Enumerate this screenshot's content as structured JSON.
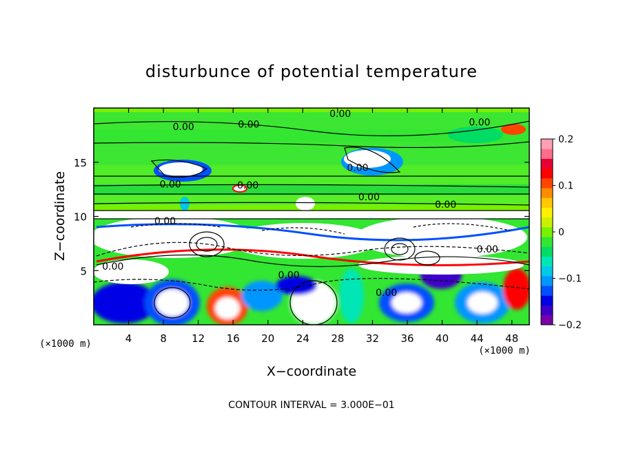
{
  "chart_data": {
    "type": "heatmap",
    "title": "disturbunce of potential temperature",
    "xlabel": "X−coordinate",
    "ylabel": "Z−coordinate",
    "x_unit": "(×1000 m)",
    "y_unit": "(×1000 m)",
    "xlim": [
      0,
      50
    ],
    "ylim": [
      0,
      20
    ],
    "x_ticks": [
      4,
      8,
      12,
      16,
      20,
      24,
      28,
      32,
      36,
      40,
      44,
      48
    ],
    "y_ticks": [
      5,
      10,
      15
    ],
    "colorbar": {
      "range": [
        -0.2,
        0.2
      ],
      "ticks": [
        {
          "value": 0.2,
          "label": "0.2"
        },
        {
          "value": 0.1,
          "label": "0.1"
        },
        {
          "value": 0,
          "label": "0"
        },
        {
          "value": -0.1,
          "label": "−0.1"
        },
        {
          "value": -0.2,
          "label": "−0.2"
        }
      ],
      "colors": [
        "#7a00a8",
        "#3c00c8",
        "#0000e6",
        "#0050ff",
        "#0096ff",
        "#00c8e6",
        "#00e6b4",
        "#00dc64",
        "#32e632",
        "#78f000",
        "#c8f000",
        "#fff000",
        "#ffc800",
        "#ff8c00",
        "#ff4600",
        "#ff0000",
        "#e60032",
        "#ff6e8c",
        "#ffa0b4"
      ]
    },
    "contour_labels": [
      {
        "x": 10.3,
        "y": 18.3,
        "text": "0.00"
      },
      {
        "x": 17.8,
        "y": 18.5,
        "text": "0.00"
      },
      {
        "x": 28.3,
        "y": 19.5,
        "text": "0.00"
      },
      {
        "x": 44.3,
        "y": 18.7,
        "text": "0.00"
      },
      {
        "x": 8.8,
        "y": 13.0,
        "text": "0.00"
      },
      {
        "x": 17.7,
        "y": 12.9,
        "text": "0.00"
      },
      {
        "x": 30.3,
        "y": 14.5,
        "text": "0.00"
      },
      {
        "x": 31.6,
        "y": 11.8,
        "text": "0.00"
      },
      {
        "x": 40.4,
        "y": 11.1,
        "text": "0.00"
      },
      {
        "x": 8.2,
        "y": 9.6,
        "text": "0.00"
      },
      {
        "x": 2.2,
        "y": 5.4,
        "text": "0.00"
      },
      {
        "x": 22.4,
        "y": 4.6,
        "text": "0.00"
      },
      {
        "x": 33.6,
        "y": 3.0,
        "text": "0.00"
      },
      {
        "x": 45.2,
        "y": 7.0,
        "text": "0.00"
      }
    ],
    "footnote": "CONTOUR INTERVAL = 3.000E−01"
  }
}
